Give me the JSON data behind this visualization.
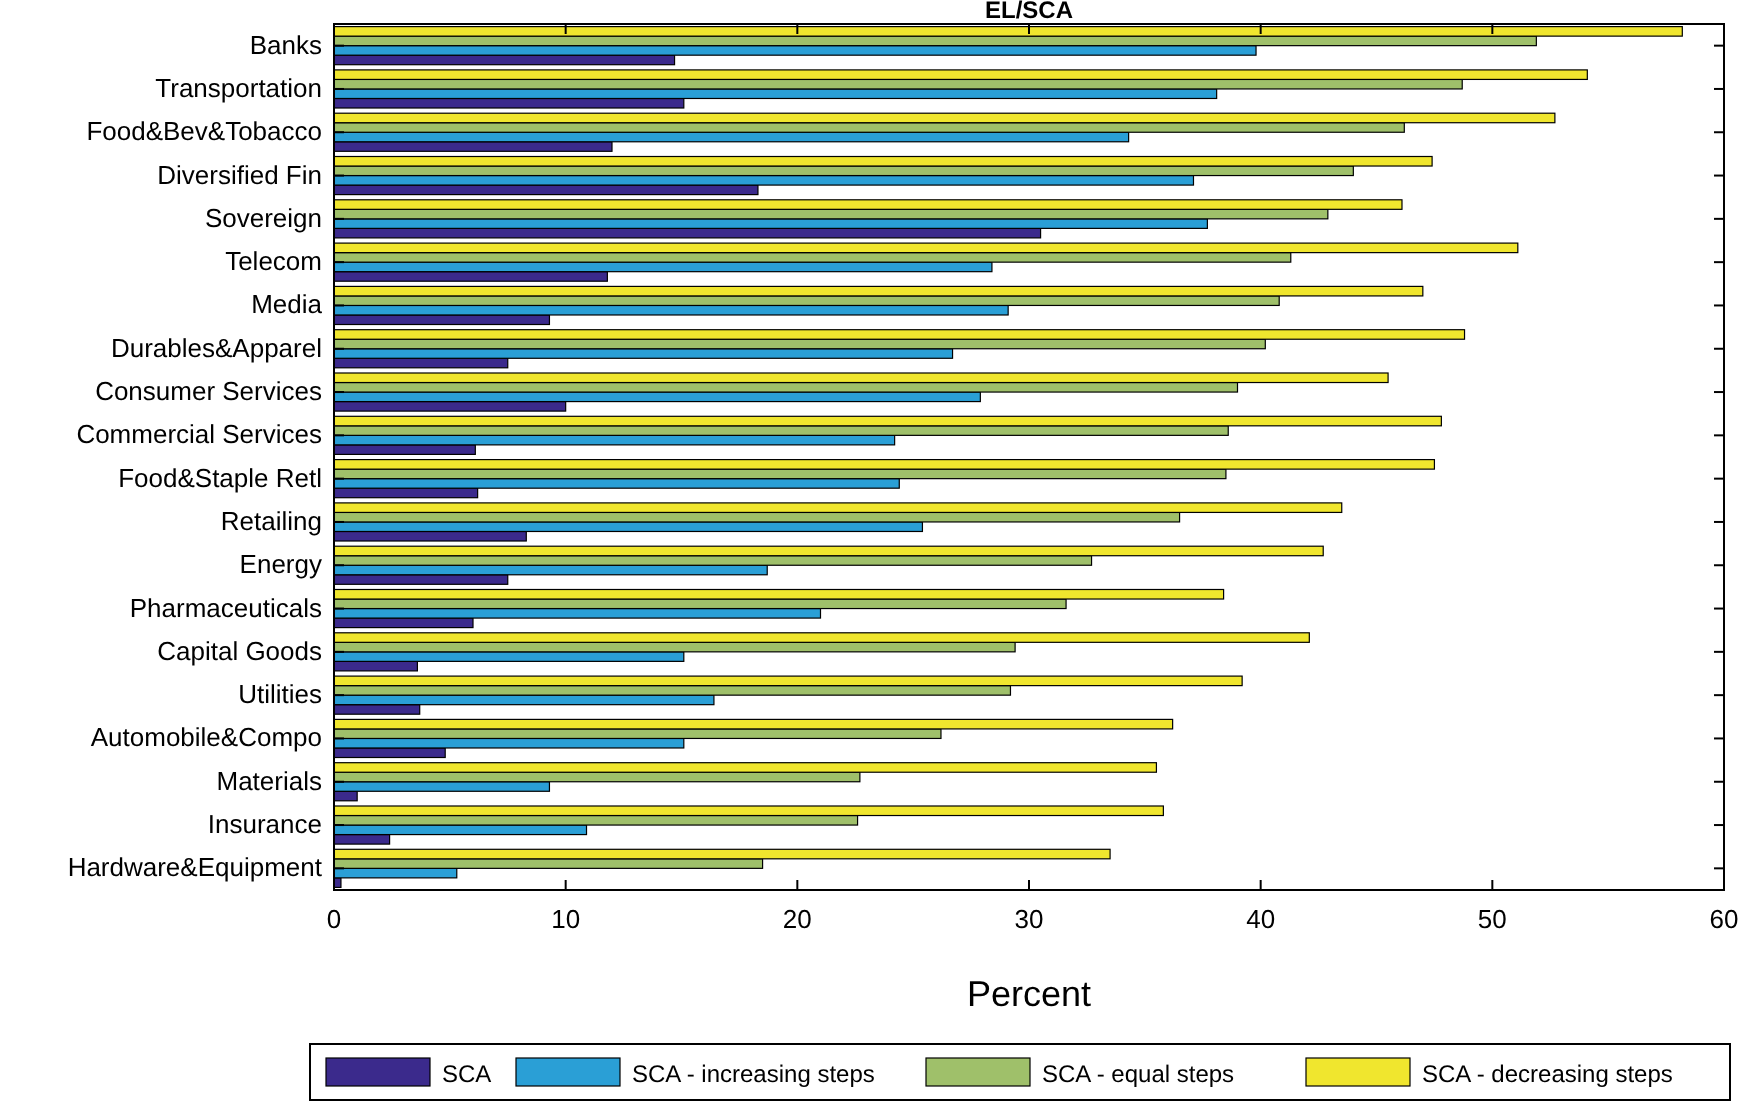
{
  "chart_data": {
    "type": "bar",
    "orientation": "horizontal",
    "title": "EL/SCA",
    "xlabel": "Percent",
    "categories": [
      "Banks",
      "Transportation",
      "Food&Bev&Tobacco",
      "Diversified Fin",
      "Sovereign",
      "Telecom",
      "Media",
      "Durables&Apparel",
      "Consumer Services",
      "Commercial Services",
      "Food&Staple Retl",
      "Retailing",
      "Energy",
      "Pharmaceuticals",
      "Capital Goods",
      "Utilities",
      "Automobile&Compo",
      "Materials",
      "Insurance",
      "Hardware&Equipment"
    ],
    "series": [
      {
        "name": "SCA",
        "color": "#3b2a8c",
        "values": [
          14.7,
          15.1,
          12.0,
          18.3,
          30.5,
          11.8,
          9.3,
          7.5,
          10.0,
          6.1,
          6.2,
          8.3,
          7.5,
          6.0,
          3.6,
          3.7,
          4.8,
          1.0,
          2.4,
          0.3
        ]
      },
      {
        "name": "SCA - increasing steps",
        "color": "#2a9fd6",
        "values": [
          39.8,
          38.1,
          34.3,
          37.1,
          37.7,
          28.4,
          29.1,
          26.7,
          27.9,
          24.2,
          24.4,
          25.4,
          18.7,
          21.0,
          15.1,
          16.4,
          15.1,
          9.3,
          10.9,
          5.3
        ]
      },
      {
        "name": "SCA - equal steps",
        "color": "#9fc06a",
        "values": [
          51.9,
          48.7,
          46.2,
          44.0,
          42.9,
          41.3,
          40.8,
          40.2,
          39.0,
          38.6,
          38.5,
          36.5,
          32.7,
          31.6,
          29.4,
          29.2,
          26.2,
          22.7,
          22.6,
          18.5
        ]
      },
      {
        "name": "SCA - decreasing steps",
        "color": "#f0e62e",
        "values": [
          58.2,
          54.1,
          52.7,
          47.4,
          46.1,
          51.1,
          47.0,
          48.8,
          45.5,
          47.8,
          47.5,
          43.5,
          42.7,
          38.4,
          42.1,
          39.2,
          36.2,
          35.5,
          35.8,
          33.5
        ]
      }
    ],
    "xlim": [
      0,
      60
    ],
    "xticks": [
      0,
      10,
      20,
      30,
      40,
      50,
      60
    ],
    "grid": false,
    "legend": "bottom"
  }
}
